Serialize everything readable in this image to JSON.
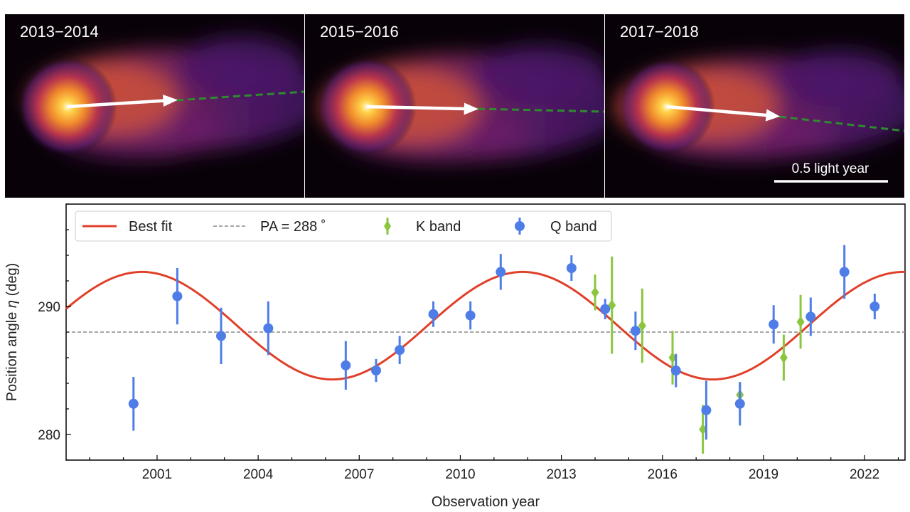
{
  "panels": [
    {
      "label": "2013−2014"
    },
    {
      "label": "2015−2016"
    },
    {
      "label": "2017−2018"
    }
  ],
  "scale_bar_label": "0.5 light year",
  "colors": {
    "fit": "#e0402a",
    "reference": "#888888",
    "k_band": "#8cc63f",
    "q_band": "#4f7de8",
    "jet_axis": "#2e8b2e",
    "arrow": "#ffffff"
  },
  "chart_data": {
    "type": "scatter",
    "xlabel": "Observation year",
    "ylabel_prefix": "Position angle ",
    "ylabel_symbol": "η",
    "ylabel_suffix": " (deg)",
    "xlim": [
      1998.3,
      2023.2
    ],
    "ylim": [
      278,
      298
    ],
    "xticks": [
      2001,
      2004,
      2007,
      2010,
      2013,
      2016,
      2019,
      2022
    ],
    "yticks": [
      280,
      290
    ],
    "grid": false,
    "legend_position": "top-left",
    "legend": [
      {
        "label": "Best fit"
      },
      {
        "label": "PA = 288 ˚"
      },
      {
        "label": "K band"
      },
      {
        "label": "Q band"
      }
    ],
    "reference_line": {
      "y": 288
    },
    "best_fit": {
      "type": "sinusoid",
      "mean": 288.5,
      "amplitude": 4.2,
      "period": 11.3,
      "peak_year": 2000.55
    },
    "series": [
      {
        "name": "Q band",
        "marker": "circle",
        "points": [
          {
            "x": 2000.3,
            "y": 282.4,
            "err": 2.1
          },
          {
            "x": 2001.6,
            "y": 290.8,
            "err": 2.2
          },
          {
            "x": 2002.9,
            "y": 287.7,
            "err": 2.2
          },
          {
            "x": 2004.3,
            "y": 288.3,
            "err": 2.1
          },
          {
            "x": 2006.6,
            "y": 285.4,
            "err": 1.9
          },
          {
            "x": 2007.5,
            "y": 285.0,
            "err": 0.9
          },
          {
            "x": 2008.2,
            "y": 286.6,
            "err": 1.1
          },
          {
            "x": 2009.2,
            "y": 289.4,
            "err": 1.0
          },
          {
            "x": 2010.3,
            "y": 289.3,
            "err": 1.1
          },
          {
            "x": 2011.2,
            "y": 292.7,
            "err": 1.4
          },
          {
            "x": 2013.3,
            "y": 293.0,
            "err": 1.0
          },
          {
            "x": 2014.3,
            "y": 289.8,
            "err": 0.8
          },
          {
            "x": 2015.2,
            "y": 288.1,
            "err": 1.5
          },
          {
            "x": 2016.4,
            "y": 285.0,
            "err": 1.3
          },
          {
            "x": 2017.3,
            "y": 281.9,
            "err": 2.3
          },
          {
            "x": 2018.3,
            "y": 282.4,
            "err": 1.7
          },
          {
            "x": 2019.3,
            "y": 288.6,
            "err": 1.5
          },
          {
            "x": 2020.4,
            "y": 289.2,
            "err": 1.5
          },
          {
            "x": 2021.4,
            "y": 292.7,
            "err": 2.1
          },
          {
            "x": 2022.3,
            "y": 290.0,
            "err": 1.0
          }
        ]
      },
      {
        "name": "K band",
        "marker": "diamond",
        "points": [
          {
            "x": 2014.0,
            "y": 291.1,
            "err": 1.4
          },
          {
            "x": 2014.5,
            "y": 290.1,
            "err": 3.8
          },
          {
            "x": 2015.4,
            "y": 288.5,
            "err": 2.9
          },
          {
            "x": 2016.3,
            "y": 286.0,
            "err": 2.1
          },
          {
            "x": 2017.2,
            "y": 280.4,
            "err": 1.9
          },
          {
            "x": 2018.3,
            "y": 283.1,
            "err": 1.0
          },
          {
            "x": 2019.6,
            "y": 286.0,
            "err": 1.8
          },
          {
            "x": 2020.1,
            "y": 288.8,
            "err": 2.1
          }
        ]
      }
    ]
  }
}
